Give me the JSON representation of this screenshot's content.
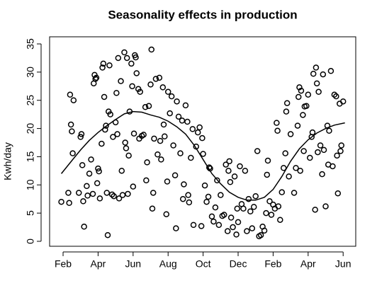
{
  "chart_data": {
    "type": "scatter",
    "title": "Seasonality effects in production",
    "y_label": "Kwh/day",
    "xlim": [
      -0.77,
      16.72
    ],
    "ylim": [
      -0.88,
      36.26
    ],
    "xticks": [
      {
        "value": 0,
        "label": "Feb"
      },
      {
        "value": 2,
        "label": "Apr"
      },
      {
        "value": 4,
        "label": "Jun"
      },
      {
        "value": 6,
        "label": "Aug"
      },
      {
        "value": 8,
        "label": "Oct"
      },
      {
        "value": 10,
        "label": "Dec"
      },
      {
        "value": 12,
        "label": "Feb"
      },
      {
        "value": 14,
        "label": "Apr"
      },
      {
        "value": 16,
        "label": "Jun"
      }
    ],
    "yticks": [
      0,
      5,
      10,
      15,
      20,
      25,
      30,
      35
    ],
    "series": [
      {
        "type": "scatter",
        "color": "#000000",
        "x": [
          -0.1,
          0.3,
          0.35,
          0.4,
          0.45,
          0.5,
          0.55,
          0.6,
          0.9,
          1.0,
          1.05,
          1.1,
          1.15,
          1.2,
          1.35,
          1.4,
          1.5,
          1.6,
          1.7,
          1.75,
          1.8,
          1.85,
          1.9,
          1.95,
          2.0,
          2.05,
          2.1,
          2.2,
          2.25,
          2.3,
          2.35,
          2.4,
          2.45,
          2.5,
          2.55,
          2.6,
          2.65,
          2.7,
          2.8,
          2.85,
          2.9,
          3.0,
          3.05,
          3.1,
          3.15,
          3.2,
          3.3,
          3.35,
          3.4,
          3.5,
          3.55,
          3.6,
          3.65,
          3.7,
          3.75,
          3.8,
          3.9,
          3.95,
          4.0,
          4.05,
          4.1,
          4.15,
          4.2,
          4.3,
          4.35,
          4.4,
          4.5,
          4.6,
          4.7,
          4.75,
          4.8,
          4.9,
          5.0,
          5.05,
          5.1,
          5.15,
          5.2,
          5.3,
          5.4,
          5.5,
          5.55,
          5.6,
          5.7,
          5.75,
          5.8,
          5.9,
          5.95,
          6.0,
          6.1,
          6.2,
          6.3,
          6.4,
          6.45,
          6.5,
          6.6,
          6.7,
          6.8,
          6.85,
          6.9,
          7.0,
          7.1,
          7.15,
          7.2,
          7.3,
          7.4,
          7.45,
          7.6,
          7.7,
          7.8,
          7.9,
          7.95,
          8.0,
          8.1,
          8.2,
          8.3,
          8.35,
          8.4,
          8.5,
          8.6,
          8.7,
          8.8,
          8.9,
          9.0,
          9.1,
          9.2,
          9.3,
          9.4,
          9.45,
          9.5,
          9.55,
          9.6,
          9.7,
          9.8,
          9.9,
          9.95,
          10.0,
          10.1,
          10.2,
          10.3,
          10.4,
          10.5,
          10.6,
          10.7,
          10.8,
          10.9,
          11.0,
          11.1,
          11.2,
          11.3,
          11.4,
          11.5,
          11.6,
          11.65,
          11.7,
          11.8,
          11.9,
          12.0,
          12.1,
          12.2,
          12.25,
          12.3,
          12.4,
          12.5,
          12.6,
          12.7,
          12.75,
          12.8,
          12.9,
          13.0,
          13.2,
          13.3,
          13.4,
          13.45,
          13.5,
          13.55,
          13.6,
          13.7,
          13.75,
          13.8,
          13.9,
          14.0,
          14.1,
          14.2,
          14.25,
          14.3,
          14.4,
          14.45,
          14.5,
          14.55,
          14.6,
          14.7,
          14.8,
          14.85,
          14.9,
          15.0,
          15.1,
          15.15,
          15.2,
          15.3,
          15.4,
          15.5,
          15.6,
          15.65,
          15.7,
          15.8,
          15.85,
          15.9,
          16.0
        ],
        "values": [
          7,
          8.6,
          6.8,
          26,
          20.7,
          19.5,
          15.6,
          25,
          8.6,
          18.5,
          19,
          13.5,
          7.1,
          2.6,
          9.8,
          8.1,
          12,
          14.5,
          8.4,
          28,
          29.5,
          28.8,
          29,
          10.3,
          12.9,
          12.4,
          7.6,
          17.3,
          30.8,
          31.5,
          25.6,
          19.8,
          20.5,
          8.6,
          1.1,
          23,
          31.2,
          22.5,
          8.3,
          18.5,
          8,
          21.1,
          26.3,
          19,
          32.5,
          7.6,
          28.4,
          12.5,
          8.2,
          33.5,
          17.5,
          16.5,
          32.5,
          8.4,
          15.2,
          23,
          31.5,
          27.5,
          9.7,
          19.1,
          33,
          32.6,
          29.8,
          27,
          18.2,
          26.5,
          18.7,
          18.9,
          23.8,
          10.8,
          14,
          24,
          27.8,
          34,
          5.8,
          8.6,
          18.2,
          28.8,
          15.4,
          29,
          17.8,
          14.5,
          27.3,
          20.7,
          18.6,
          4.8,
          10.6,
          26.5,
          22.7,
          25.7,
          17,
          11.7,
          2.3,
          24.8,
          22.1,
          15.6,
          21.4,
          7.5,
          10.1,
          24.1,
          21.2,
          8.2,
          6.9,
          14.8,
          19.9,
          2.9,
          16.8,
          19.3,
          20.2,
          2.7,
          18.3,
          15.5,
          9.9,
          7,
          7.9,
          13.1,
          12.9,
          4.4,
          3.5,
          6,
          10.8,
          2.9,
          8.2,
          4.5,
          4.7,
          13.6,
          1.8,
          12.5,
          14.2,
          10.5,
          4.2,
          2.5,
          11.5,
          1.2,
          5.8,
          3.4,
          13.3,
          6.6,
          5.8,
          12.5,
          1.8,
          7.5,
          5.3,
          2.3,
          6.1,
          8,
          16,
          0.9,
          1.1,
          2.6,
          1.9,
          5,
          11.8,
          14.3,
          7.1,
          4.7,
          6.5,
          5.8,
          21,
          19.6,
          6.2,
          3.8,
          8.7,
          13,
          15.6,
          23,
          24.5,
          11.5,
          19,
          8.6,
          13,
          20.5,
          25.6,
          27.3,
          12.5,
          26.7,
          22.4,
          16,
          23.9,
          24,
          26,
          14.8,
          18.5,
          19.3,
          29.7,
          5.6,
          30.8,
          28,
          15.8,
          26.5,
          17,
          11.9,
          29.6,
          16.2,
          6.2,
          20.5,
          13.6,
          19.6,
          30.2,
          13.3,
          26,
          25.7,
          15.2,
          8.5,
          24.4,
          16,
          17,
          24.8
        ]
      },
      {
        "type": "line",
        "color": "#000000",
        "x": [
          -0.1,
          0.5,
          1,
          1.5,
          2,
          2.5,
          3,
          3.5,
          4,
          4.5,
          5,
          5.5,
          6,
          6.5,
          7,
          7.5,
          8,
          8.5,
          9,
          9.5,
          10,
          10.5,
          11,
          11.5,
          12,
          12.5,
          13,
          13.5,
          14,
          14.5,
          15,
          15.5,
          16.1
        ],
        "values": [
          12,
          14.3,
          16.2,
          17.9,
          19.3,
          20.5,
          21.6,
          22.6,
          23,
          22.9,
          22.4,
          22,
          21.3,
          20.3,
          19,
          17,
          14.5,
          12,
          10.2,
          8.7,
          7.8,
          7.3,
          7.3,
          7.8,
          9.2,
          11.5,
          14.2,
          16.4,
          18,
          19.2,
          20,
          20.6,
          21
        ]
      }
    ]
  }
}
